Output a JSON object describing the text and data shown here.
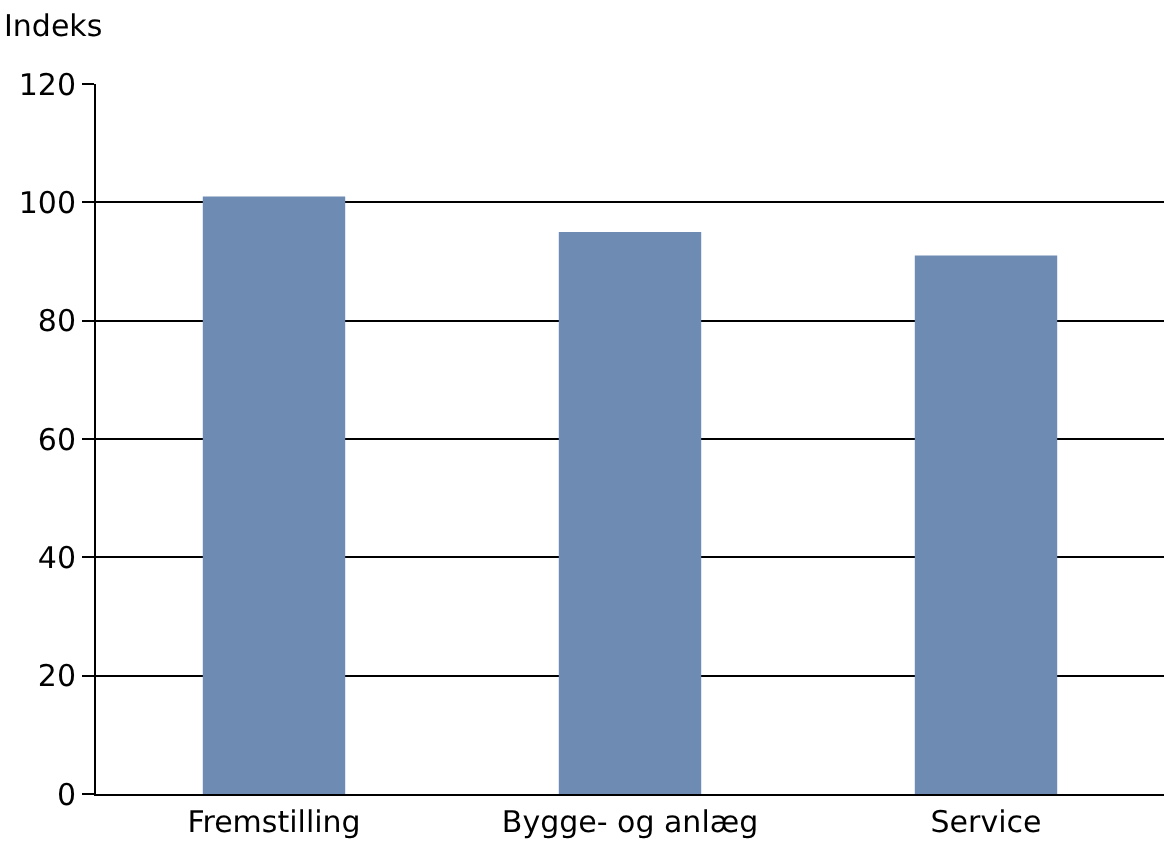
{
  "chart_data": {
    "type": "bar",
    "ylabel": "Indeks",
    "categories": [
      "Fremstilling",
      "Bygge- og anlæg",
      "Service"
    ],
    "values": [
      101,
      95,
      91
    ],
    "color": "#6e8bb3",
    "ylim": [
      0,
      120
    ],
    "yticks": [
      0,
      20,
      40,
      60,
      80,
      100,
      120
    ],
    "grid": "y"
  }
}
